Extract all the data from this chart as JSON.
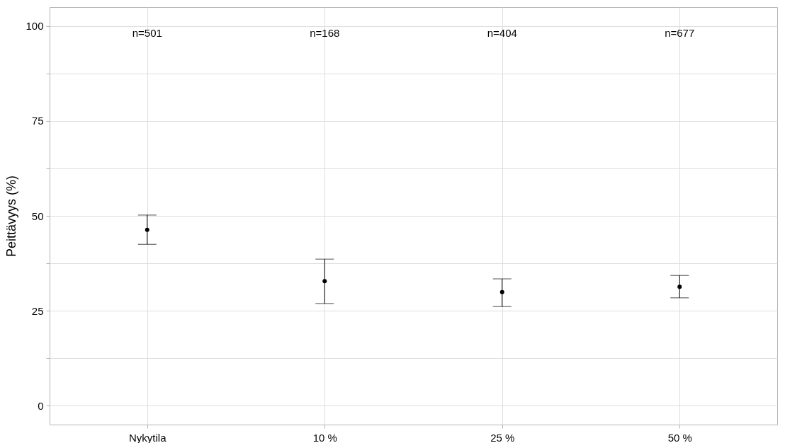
{
  "chart_data": {
    "type": "scatter",
    "ylabel": "Peittävyys (%)",
    "categories": [
      "Nykytila",
      "10 %",
      "25 %",
      "50 %"
    ],
    "series": [
      {
        "color": "#000000",
        "values": [
          46.3,
          32.8,
          29.9,
          31.3
        ],
        "errors": [
          [
            42.5,
            50.2
          ],
          [
            26.9,
            38.6
          ],
          [
            26.1,
            33.4
          ],
          [
            28.4,
            34.3
          ]
        ]
      }
    ],
    "marker": "circle",
    "grid": true,
    "ylim": [
      -5,
      105
    ],
    "yticks": [
      0,
      {
        "value": 12.5,
        "label": null
      },
      25,
      {
        "value": 37.5,
        "label": null
      },
      50,
      {
        "value": 62.5,
        "label": null
      },
      75,
      {
        "value": 87.5,
        "label": null
      },
      100
    ],
    "annotations": [
      "n=501",
      "n=168",
      "n=404",
      "n=677"
    ]
  }
}
